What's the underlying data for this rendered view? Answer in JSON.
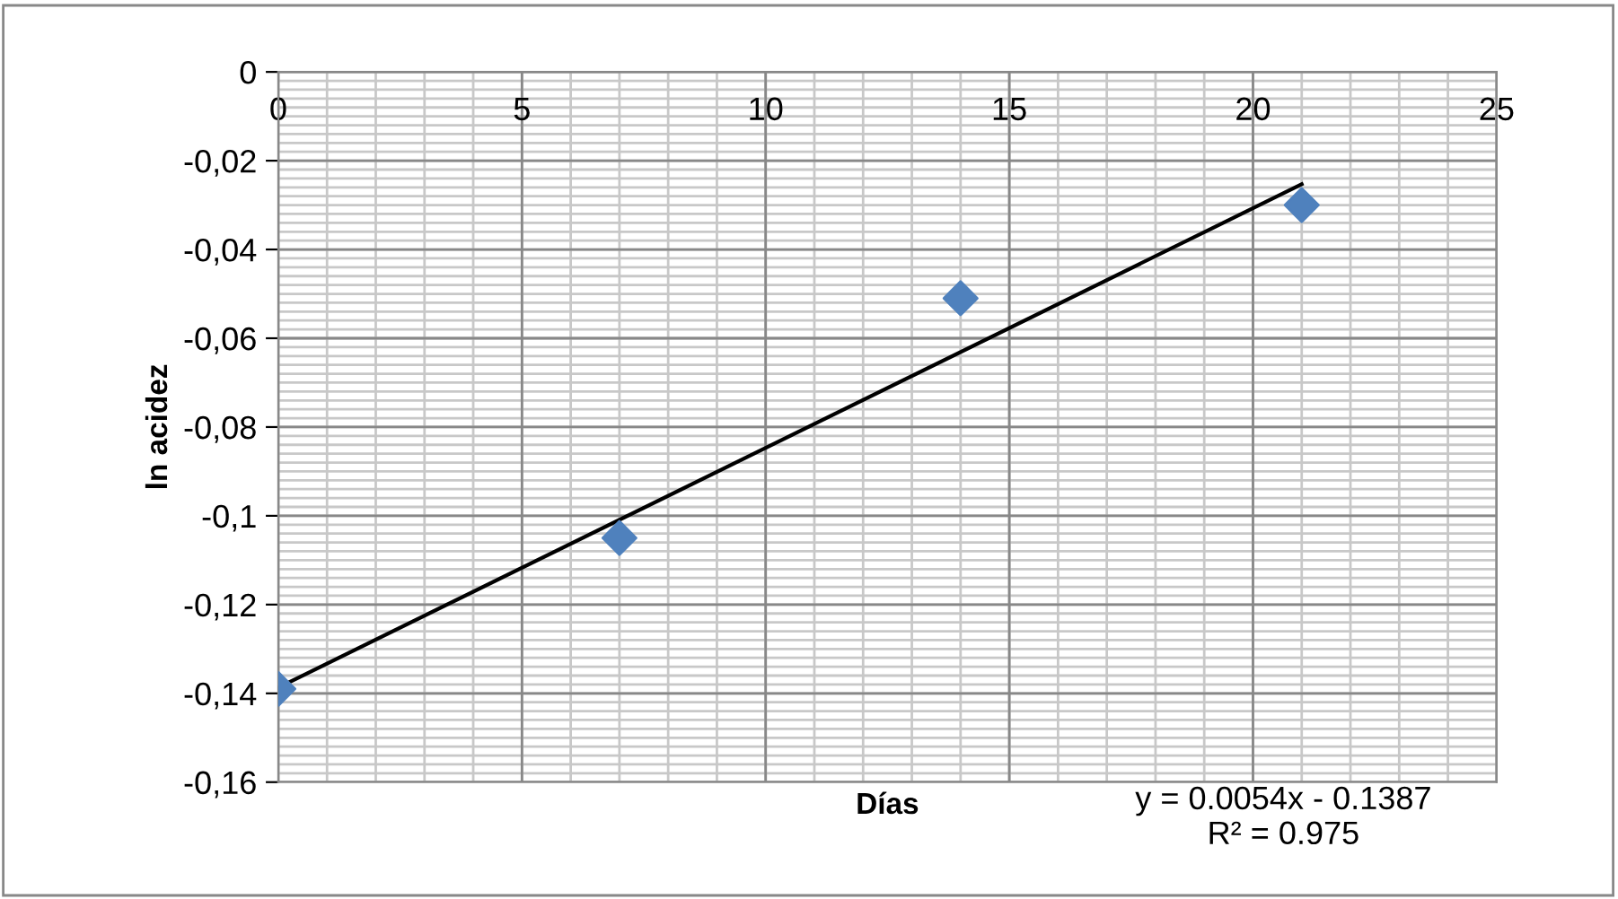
{
  "chart_data": {
    "type": "scatter",
    "xlabel": "Días",
    "ylabel": "ln acidez",
    "series": [
      {
        "color": "#4f81bd",
        "marker": "diamond",
        "x": [
          0,
          7,
          14,
          21
        ],
        "values": [
          -0.139,
          -0.105,
          -0.051,
          -0.03
        ]
      },
      {
        "type": "line",
        "color": "#000000",
        "marker": "none",
        "line_style": "solid",
        "x": [
          0,
          21
        ],
        "values": [
          -0.1387,
          -0.0253
        ]
      }
    ],
    "xlim": [
      0,
      25
    ],
    "xticks": [
      0,
      5,
      10,
      15,
      20,
      25
    ],
    "ylim": [
      -0.16,
      0
    ],
    "yticks": [
      {
        "value": -0.16,
        "label": "-0,16"
      },
      {
        "value": -0.14,
        "label": "-0,14"
      },
      {
        "value": -0.12,
        "label": "-0,12"
      },
      {
        "value": -0.1,
        "label": "-0,1"
      },
      {
        "value": -0.08,
        "label": "-0,08"
      },
      {
        "value": -0.06,
        "label": "-0,06"
      },
      {
        "value": -0.04,
        "label": "-0,04"
      },
      {
        "value": -0.02,
        "label": "-0,02"
      },
      {
        "value": 0,
        "label": "0"
      }
    ],
    "grid": true,
    "legend": false,
    "annotations": [
      "y = 0.0054x - 0.1387\nR² = 0.975"
    ]
  }
}
